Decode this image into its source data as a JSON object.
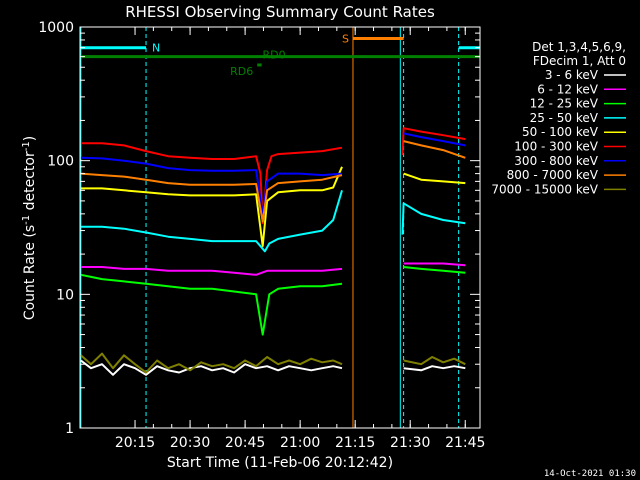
{
  "chart_data": {
    "type": "line",
    "title": "RHESSI Observing Summary Count Rates",
    "xlabel": "Start Time (11-Feb-06 20:12:42)",
    "ylabel_main": "Count Rate (s",
    "ylabel_sup1": "-1",
    "ylabel_mid": " detector",
    "ylabel_sup2": "-1",
    "ylabel_end": ")",
    "y_scale": "log",
    "ylim": [
      1,
      1000
    ],
    "xlim_minutes": [
      20.0,
      21.817
    ],
    "x_ticks": [
      "20:15",
      "20:30",
      "20:45",
      "21:00",
      "21:15",
      "21:30",
      "21:45"
    ],
    "y_ticks": [
      "1",
      "10",
      "100",
      "1000"
    ],
    "legend_header": [
      "Det 1,3,4,5,6,9,",
      "FDecim 1, Att 0"
    ],
    "legend_position": "right",
    "series": [
      {
        "name": "3 - 6 keV",
        "color": "#ffffff",
        "segments": [
          [
            [
              20.004,
              3.2
            ],
            [
              20.05,
              2.8
            ],
            [
              20.1,
              3.0
            ],
            [
              20.15,
              2.5
            ],
            [
              20.2,
              3.0
            ],
            [
              20.25,
              2.8
            ],
            [
              20.3,
              2.5
            ],
            [
              20.35,
              2.9
            ],
            [
              20.4,
              2.7
            ],
            [
              20.45,
              2.6
            ],
            [
              20.5,
              2.8
            ],
            [
              20.55,
              2.9
            ],
            [
              20.6,
              2.7
            ],
            [
              20.65,
              2.8
            ],
            [
              20.7,
              2.6
            ],
            [
              20.75,
              3.0
            ],
            [
              20.8,
              2.8
            ],
            [
              20.85,
              2.9
            ],
            [
              20.9,
              2.7
            ],
            [
              20.95,
              2.9
            ],
            [
              21.0,
              2.8
            ],
            [
              21.05,
              2.7
            ],
            [
              21.1,
              2.8
            ],
            [
              21.15,
              2.9
            ],
            [
              21.19,
              2.8
            ]
          ],
          [
            [
              21.47,
              2.8
            ],
            [
              21.55,
              2.7
            ],
            [
              21.6,
              2.9
            ],
            [
              21.65,
              2.8
            ],
            [
              21.7,
              2.9
            ],
            [
              21.75,
              2.8
            ]
          ]
        ]
      },
      {
        "name": "6 - 12 keV",
        "color": "#ff00ff",
        "segments": [
          [
            [
              20.004,
              16
            ],
            [
              20.1,
              16
            ],
            [
              20.2,
              15.5
            ],
            [
              20.3,
              15.5
            ],
            [
              20.4,
              15
            ],
            [
              20.5,
              15
            ],
            [
              20.6,
              15
            ],
            [
              20.7,
              14.5
            ],
            [
              20.8,
              14
            ],
            [
              20.85,
              15
            ],
            [
              20.9,
              15
            ],
            [
              21.0,
              15
            ],
            [
              21.1,
              15
            ],
            [
              21.19,
              15.5
            ]
          ],
          [
            [
              21.47,
              17
            ],
            [
              21.55,
              17
            ],
            [
              21.65,
              17
            ],
            [
              21.75,
              16.5
            ]
          ]
        ]
      },
      {
        "name": "12 - 25 keV",
        "color": "#00ff00",
        "segments": [
          [
            [
              20.004,
              14
            ],
            [
              20.05,
              13.5
            ],
            [
              20.1,
              13
            ],
            [
              20.2,
              12.5
            ],
            [
              20.3,
              12
            ],
            [
              20.4,
              11.5
            ],
            [
              20.5,
              11
            ],
            [
              20.6,
              11
            ],
            [
              20.7,
              10.5
            ],
            [
              20.8,
              10
            ],
            [
              20.83,
              5
            ],
            [
              20.86,
              10
            ],
            [
              20.9,
              11
            ],
            [
              21.0,
              11.5
            ],
            [
              21.1,
              11.5
            ],
            [
              21.19,
              12
            ]
          ],
          [
            [
              21.47,
              16
            ],
            [
              21.55,
              15.5
            ],
            [
              21.65,
              15
            ],
            [
              21.75,
              14.5
            ]
          ]
        ]
      },
      {
        "name": "25 - 50 keV",
        "color": "#00ffff",
        "segments": [
          [
            [
              20.004,
              32
            ],
            [
              20.1,
              32
            ],
            [
              20.2,
              31
            ],
            [
              20.3,
              29
            ],
            [
              20.4,
              27
            ],
            [
              20.5,
              26
            ],
            [
              20.6,
              25
            ],
            [
              20.7,
              25
            ],
            [
              20.8,
              25
            ],
            [
              20.84,
              21
            ],
            [
              20.86,
              24
            ],
            [
              20.9,
              26
            ],
            [
              21.0,
              28
            ],
            [
              21.1,
              30
            ],
            [
              21.15,
              36
            ],
            [
              21.19,
              60
            ]
          ],
          [
            [
              21.465,
              28
            ],
            [
              21.47,
              48
            ],
            [
              21.55,
              40
            ],
            [
              21.65,
              36
            ],
            [
              21.75,
              34
            ]
          ]
        ]
      },
      {
        "name": "50 - 100 keV",
        "color": "#ffff00",
        "segments": [
          [
            [
              20.004,
              62
            ],
            [
              20.1,
              62
            ],
            [
              20.2,
              60
            ],
            [
              20.3,
              58
            ],
            [
              20.4,
              56
            ],
            [
              20.5,
              55
            ],
            [
              20.6,
              55
            ],
            [
              20.7,
              55
            ],
            [
              20.8,
              56
            ],
            [
              20.83,
              23
            ],
            [
              20.85,
              50
            ],
            [
              20.9,
              58
            ],
            [
              21.0,
              60
            ],
            [
              21.1,
              60
            ],
            [
              21.15,
              63
            ],
            [
              21.19,
              90
            ]
          ],
          [
            [
              21.47,
              80
            ],
            [
              21.55,
              72
            ],
            [
              21.65,
              70
            ],
            [
              21.75,
              68
            ]
          ]
        ]
      },
      {
        "name": "100 - 300 keV",
        "color": "#ff0000",
        "segments": [
          [
            [
              20.004,
              135
            ],
            [
              20.1,
              135
            ],
            [
              20.2,
              130
            ],
            [
              20.3,
              118
            ],
            [
              20.4,
              108
            ],
            [
              20.5,
              105
            ],
            [
              20.6,
              103
            ],
            [
              20.7,
              103
            ],
            [
              20.8,
              108
            ],
            [
              20.82,
              80
            ],
            [
              20.83,
              34
            ],
            [
              20.85,
              85
            ],
            [
              20.87,
              108
            ],
            [
              20.9,
              112
            ],
            [
              21.0,
              115
            ],
            [
              21.1,
              118
            ],
            [
              21.19,
              125
            ]
          ],
          [
            [
              21.465,
              110
            ],
            [
              21.47,
              175
            ],
            [
              21.55,
              165
            ],
            [
              21.65,
              155
            ],
            [
              21.75,
              145
            ]
          ]
        ]
      },
      {
        "name": "300 - 800 keV",
        "color": "#0000ff",
        "segments": [
          [
            [
              20.004,
              105
            ],
            [
              20.1,
              104
            ],
            [
              20.2,
              100
            ],
            [
              20.3,
              95
            ],
            [
              20.4,
              88
            ],
            [
              20.5,
              85
            ],
            [
              20.6,
              84
            ],
            [
              20.7,
              84
            ],
            [
              20.8,
              85
            ],
            [
              20.83,
              40
            ],
            [
              20.85,
              70
            ],
            [
              20.9,
              80
            ],
            [
              21.0,
              80
            ],
            [
              21.1,
              78
            ],
            [
              21.19,
              80
            ]
          ],
          [
            [
              21.47,
              160
            ],
            [
              21.55,
              150
            ],
            [
              21.65,
              140
            ],
            [
              21.75,
              130
            ]
          ]
        ]
      },
      {
        "name": "800 - 7000 keV",
        "color": "#ff8000",
        "segments": [
          [
            [
              20.004,
              80
            ],
            [
              20.1,
              78
            ],
            [
              20.2,
              76
            ],
            [
              20.3,
              72
            ],
            [
              20.4,
              68
            ],
            [
              20.5,
              66
            ],
            [
              20.6,
              66
            ],
            [
              20.7,
              66
            ],
            [
              20.8,
              67
            ],
            [
              20.83,
              35
            ],
            [
              20.85,
              60
            ],
            [
              20.9,
              68
            ],
            [
              21.0,
              70
            ],
            [
              21.1,
              72
            ],
            [
              21.19,
              78
            ]
          ],
          [
            [
              21.47,
              140
            ],
            [
              21.55,
              130
            ],
            [
              21.65,
              120
            ],
            [
              21.75,
              105
            ]
          ]
        ]
      },
      {
        "name": "7000 - 15000 keV",
        "color": "#808000",
        "segments": [
          [
            [
              20.004,
              3.5
            ],
            [
              20.05,
              3.0
            ],
            [
              20.1,
              3.6
            ],
            [
              20.15,
              2.8
            ],
            [
              20.2,
              3.5
            ],
            [
              20.25,
              3.0
            ],
            [
              20.3,
              2.6
            ],
            [
              20.35,
              3.2
            ],
            [
              20.4,
              2.8
            ],
            [
              20.45,
              3.0
            ],
            [
              20.5,
              2.7
            ],
            [
              20.55,
              3.1
            ],
            [
              20.6,
              2.9
            ],
            [
              20.65,
              3.0
            ],
            [
              20.7,
              2.8
            ],
            [
              20.75,
              3.2
            ],
            [
              20.8,
              2.9
            ],
            [
              20.85,
              3.4
            ],
            [
              20.9,
              3.0
            ],
            [
              20.95,
              3.2
            ],
            [
              21.0,
              3.0
            ],
            [
              21.05,
              3.3
            ],
            [
              21.1,
              3.1
            ],
            [
              21.15,
              3.2
            ],
            [
              21.19,
              3.0
            ]
          ],
          [
            [
              21.47,
              3.2
            ],
            [
              21.55,
              3.0
            ],
            [
              21.6,
              3.4
            ],
            [
              21.65,
              3.1
            ],
            [
              21.7,
              3.3
            ],
            [
              21.75,
              3.0
            ]
          ]
        ]
      }
    ],
    "flags": [
      {
        "label": "N",
        "color": "#00ffff",
        "y": 700,
        "segments": [
          [
            20.004,
            20.3
          ],
          [
            21.72,
            21.817
          ]
        ]
      },
      {
        "label": "S",
        "color": "#ff8000",
        "y": 820,
        "segments": [
          [
            21.24,
            21.47
          ]
        ]
      },
      {
        "label": "RD0",
        "color": "#008000",
        "y": 600,
        "segments": [
          [
            20.004,
            21.817
          ]
        ]
      },
      {
        "label": "RD6",
        "color": "#008000",
        "y": 520,
        "segments": [
          [
            20.805,
            20.825
          ]
        ]
      }
    ],
    "vlines": [
      {
        "x": 20.004,
        "color": "#00ffff",
        "style": "solid"
      },
      {
        "x": 20.3,
        "color": "#00ffff",
        "style": "dashed"
      },
      {
        "x": 21.24,
        "color": "#ff8000",
        "style": "solid"
      },
      {
        "x": 21.455,
        "color": "#00ffff",
        "style": "solid"
      },
      {
        "x": 21.47,
        "color": "#00ffff",
        "style": "dashed"
      },
      {
        "x": 21.72,
        "color": "#00ffff",
        "style": "dashed"
      }
    ],
    "grid": false
  },
  "footer": {
    "timestamp": "14-Oct-2021 01:30"
  }
}
